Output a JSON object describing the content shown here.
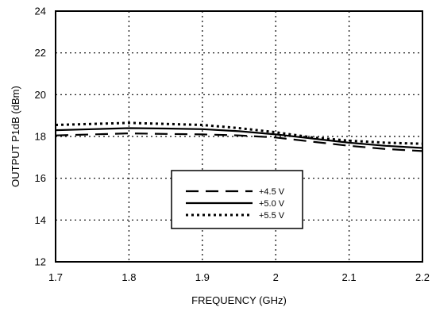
{
  "chart_data": {
    "type": "line",
    "title": "",
    "xlabel": "FREQUENCY (GHz)",
    "ylabel": "OUTPUT P1dB (dBm)",
    "xlim": [
      1.7,
      2.2
    ],
    "ylim": [
      12,
      24
    ],
    "x_ticks": [
      "1.7",
      "1.8",
      "1.9",
      "2",
      "2.1",
      "2.2"
    ],
    "y_ticks": [
      "12",
      "14",
      "16",
      "18",
      "20",
      "22",
      "24"
    ],
    "grid": true,
    "legend_position": "center-bottom inside plot",
    "series": [
      {
        "name": "+4.5 V",
        "style": "long-dash",
        "x": [
          1.7,
          1.75,
          1.8,
          1.85,
          1.9,
          1.95,
          2.0,
          2.05,
          2.1,
          2.15,
          2.2
        ],
        "y": [
          18.05,
          18.1,
          18.15,
          18.12,
          18.1,
          18.05,
          17.95,
          17.75,
          17.55,
          17.4,
          17.3
        ]
      },
      {
        "name": "+5.0 V",
        "style": "solid",
        "x": [
          1.7,
          1.75,
          1.8,
          1.85,
          1.9,
          1.95,
          2.0,
          2.05,
          2.1,
          2.15,
          2.2
        ],
        "y": [
          18.3,
          18.35,
          18.4,
          18.38,
          18.35,
          18.25,
          18.1,
          17.9,
          17.7,
          17.55,
          17.45
        ]
      },
      {
        "name": "+5.5 V",
        "style": "dotted",
        "x": [
          1.7,
          1.75,
          1.8,
          1.85,
          1.9,
          1.95,
          2.0,
          2.05,
          2.1,
          2.15,
          2.2
        ],
        "y": [
          18.55,
          18.6,
          18.65,
          18.6,
          18.55,
          18.4,
          18.2,
          17.95,
          17.8,
          17.7,
          17.65
        ]
      }
    ]
  }
}
